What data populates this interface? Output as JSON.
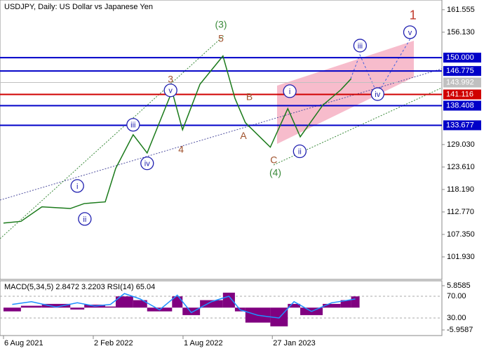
{
  "chart_data": {
    "type": "line",
    "title": "USDJPY, Daily:  US Dollar vs Japanese Yen",
    "color": "#1a7a1a",
    "x": [
      "2021-08-06",
      "2021-09-10",
      "2021-10-22",
      "2021-12-18",
      "2022-01-15",
      "2022-02-26",
      "2022-03-19",
      "2022-04-23",
      "2022-05-21",
      "2022-07-10",
      "2022-07-31",
      "2022-09-04",
      "2022-10-20",
      "2022-11-13",
      "2022-12-04",
      "2023-01-23",
      "2023-02-27",
      "2023-03-24",
      "2023-05-08",
      "2023-06-13",
      "2023-07-04"
    ],
    "values": [
      110.1,
      110.5,
      114.0,
      113.6,
      114.8,
      115.2,
      123.3,
      131.4,
      127.0,
      141.9,
      132.6,
      143.6,
      150.4,
      140.2,
      134.3,
      128.4,
      137.7,
      130.9,
      138.5,
      142.2,
      144.9
    ],
    "xlim": [
      "2021-07-30",
      "2024-01-02"
    ],
    "xticks": [
      {
        "value": "2021-08-06",
        "label": "6 Aug 2021"
      },
      {
        "value": "2022-02-02",
        "label": "2 Feb 2022"
      },
      {
        "value": "2022-08-01",
        "label": "1 Aug 2022"
      },
      {
        "value": "2023-01-27",
        "label": "27 Jan 2023"
      }
    ],
    "ylim": [
      96.5,
      163.9
    ],
    "yticks": [
      161.555,
      {
        "value": 156.13,
        "label": "156.130"
      },
      {
        "value": 129.03,
        "label": "129.030"
      },
      {
        "value": 123.61,
        "label": "123.610"
      },
      {
        "value": 118.19,
        "label": "118.190"
      },
      {
        "value": 112.77,
        "label": "112.770"
      },
      {
        "value": 107.35,
        "label": "107.350"
      },
      {
        "value": 101.93,
        "label": "101.930"
      }
    ],
    "levels": [
      {
        "value": 150,
        "label": "150.000",
        "color": "#0000c8"
      },
      {
        "value": 146.775,
        "label": "146.775",
        "color": "#0000c8"
      },
      {
        "value": 143.992,
        "label": "143.992",
        "color": "#c0c0c0"
      },
      {
        "value": 141.116,
        "label": "141.116",
        "color": "#d00000"
      },
      {
        "value": 138.408,
        "label": "138.408",
        "color": "#0000c8"
      },
      {
        "value": 133.677,
        "label": "133.677",
        "color": "#0000c8"
      }
    ],
    "annotations": [
      {
        "text": "1",
        "x": "2023-11-05",
        "y": 160.2,
        "color": "#c0392b",
        "circle": false
      },
      {
        "text": "v",
        "x": "2023-10-30",
        "y": 156.13,
        "color": "#2020b0",
        "circle": true
      },
      {
        "text": "iii",
        "x": "2023-07-22",
        "y": 152.9,
        "color": "#2020b0",
        "circle": true
      },
      {
        "text": "iv",
        "x": "2023-08-26",
        "y": 141.2,
        "color": "#2020b0",
        "circle": true
      },
      {
        "text": "(3)",
        "x": "2022-10-16",
        "y": 158.0,
        "color": "#3a8a3a",
        "circle": false
      },
      {
        "text": "5",
        "x": "2022-10-16",
        "y": 154.6,
        "color": "#a0522d",
        "circle": false
      },
      {
        "text": "3",
        "x": "2022-07-07",
        "y": 144.8,
        "color": "#a0522d",
        "circle": false
      },
      {
        "text": "v",
        "x": "2022-07-07",
        "y": 142.1,
        "color": "#2020b0",
        "circle": true
      },
      {
        "text": "iii",
        "x": "2022-04-23",
        "y": 133.8,
        "color": "#2020b0",
        "circle": true
      },
      {
        "text": "iv",
        "x": "2022-05-21",
        "y": 124.5,
        "color": "#2020b0",
        "circle": true
      },
      {
        "text": "4",
        "x": "2022-07-28",
        "y": 127.85,
        "color": "#a0522d",
        "circle": false
      },
      {
        "text": "i",
        "x": "2022-01-01",
        "y": 119.04,
        "color": "#2020b0",
        "circle": true
      },
      {
        "text": "ii",
        "x": "2022-01-16",
        "y": 111.08,
        "color": "#2020b0",
        "circle": true
      },
      {
        "text": "B",
        "x": "2022-12-12",
        "y": 140.55,
        "color": "#a0522d",
        "circle": false
      },
      {
        "text": "A",
        "x": "2022-11-30",
        "y": 131.2,
        "color": "#a0522d",
        "circle": false
      },
      {
        "text": "C",
        "x": "2023-01-30",
        "y": 125.3,
        "color": "#a0522d",
        "circle": false
      },
      {
        "text": "(4)",
        "x": "2023-02-02",
        "y": 122.26,
        "color": "#3a8a3a",
        "circle": false
      },
      {
        "text": "i",
        "x": "2023-03-03",
        "y": 141.9,
        "color": "#2020b0",
        "circle": true
      },
      {
        "text": "ii",
        "x": "2023-03-23",
        "y": 127.4,
        "color": "#2020b0",
        "circle": true
      }
    ],
    "indicator": {
      "label": "MACD(5,34,5) 2.8472 3.2203 RSI(14) 65.04",
      "ylim": [
        -7.46,
        7.17
      ],
      "yticks": [
        5.8585,
        -5.9587
      ],
      "histogram": [
        -1,
        0.5,
        1,
        -0.5,
        0.8,
        0.3,
        3,
        2,
        -1,
        3,
        -2,
        2,
        4,
        -1,
        -4,
        -5,
        1,
        -2,
        1,
        2,
        3
      ],
      "histogram_color": "#800080",
      "rsi_ylim": [
        -2.3,
        98.4
      ],
      "rsi_ticks": [
        {
          "value": 70,
          "label": "70.00"
        },
        {
          "value": 30,
          "label": "30.00"
        }
      ],
      "rsi_values": [
        55,
        60,
        50,
        58,
        52,
        55,
        75,
        65,
        45,
        72,
        40,
        60,
        70,
        45,
        35,
        30,
        60,
        42,
        58,
        62,
        65
      ],
      "rsi_color": "#1e90ff"
    }
  }
}
